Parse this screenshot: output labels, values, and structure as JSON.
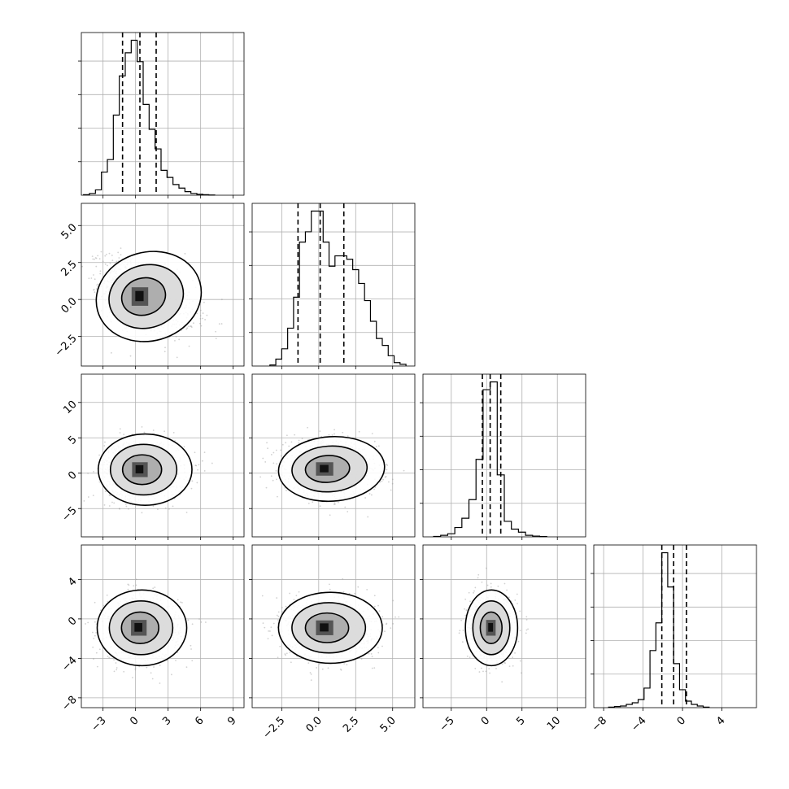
{
  "chart_data": {
    "type": "corner",
    "n_params": 4,
    "grid": true,
    "hist_style": "step",
    "contour_style": "filled density with 3 contour levels and scatter points",
    "colors": {
      "line": "#000000",
      "scatter": "#9a9a9a",
      "grid": "#b0b0b0"
    },
    "params": [
      {
        "index": 0,
        "range": [
          -5,
          10
        ],
        "ticks": [
          -3,
          0,
          3,
          6,
          9
        ],
        "tick_labels": [
          "−3",
          "0",
          "3",
          "6",
          "9"
        ],
        "quantiles": [
          -1.2,
          0.4,
          1.9
        ],
        "hist": {
          "edges_start": -4.8,
          "bin_width": 0.55,
          "counts": [
            0.3,
            1,
            3,
            13,
            20,
            45,
            67,
            80,
            87,
            75,
            51,
            37,
            26,
            14,
            10,
            6,
            4,
            2,
            1,
            0.5,
            0.3,
            0.1
          ]
        }
      },
      {
        "index": 1,
        "range": [
          -4.5,
          6.5
        ],
        "ticks": [
          -2.5,
          0.0,
          2.5,
          5.0
        ],
        "tick_labels": [
          "−2.5",
          "0.0",
          "2.5",
          "5.0"
        ],
        "quantiles": [
          -1.4,
          0.1,
          1.7
        ],
        "hist": {
          "edges_start": -3.3,
          "bin_width": 0.4,
          "counts": [
            0.3,
            2,
            5,
            11,
            20,
            36,
            39,
            45,
            45,
            36,
            29,
            32,
            32,
            31,
            28,
            24,
            19,
            13,
            8,
            6,
            3,
            1,
            0.5
          ]
        }
      },
      {
        "index": 2,
        "range": [
          -9,
          14
        ],
        "ticks": [
          -5,
          0,
          5,
          10
        ],
        "tick_labels": [
          "−5",
          "0",
          "5",
          "10"
        ],
        "quantiles": [
          -0.6,
          0.5,
          2.0
        ],
        "hist": {
          "edges_start": -7.5,
          "bin_width": 1.0,
          "counts": [
            0.3,
            1,
            2,
            6,
            12,
            24,
            50,
            95,
            100,
            40,
            10,
            5,
            3,
            1,
            0.5,
            0.2
          ]
        }
      },
      {
        "index": 3,
        "range": [
          -9,
          7.5
        ],
        "ticks": [
          -8,
          -4,
          0,
          4
        ],
        "tick_labels": [
          "−8",
          "−4",
          "0",
          "4"
        ],
        "quantiles": [
          -2.1,
          -0.9,
          0.4
        ],
        "hist": {
          "edges_start": -7.5,
          "bin_width": 0.6,
          "counts": [
            0.3,
            0.7,
            1,
            2,
            3,
            5,
            12,
            35,
            52,
            95,
            74,
            27,
            11,
            4,
            2,
            1,
            0.3
          ]
        }
      }
    ],
    "pairs": [
      {
        "row": 1,
        "col": 0,
        "x_mean": 0.4,
        "y_mean": 0.2,
        "x_sd": 1.7,
        "y_sd": 1.25,
        "rho": -0.45,
        "skew_x": 0.8
      },
      {
        "row": 2,
        "col": 0,
        "x_mean": 0.4,
        "y_mean": 0.5,
        "x_sd": 1.6,
        "y_sd": 2.1,
        "rho": 0.0,
        "skew_x": 0.5
      },
      {
        "row": 2,
        "col": 1,
        "x_mean": 0.4,
        "y_mean": 0.6,
        "x_sd": 1.3,
        "y_sd": 1.9,
        "rho": -0.1,
        "skew_x": 0.6
      },
      {
        "row": 3,
        "col": 0,
        "x_mean": 0.3,
        "y_mean": -0.9,
        "x_sd": 1.6,
        "y_sd": 1.6,
        "rho": 0.0,
        "skew_x": 0.3
      },
      {
        "row": 3,
        "col": 1,
        "x_mean": 0.4,
        "y_mean": -0.9,
        "x_sd": 1.3,
        "y_sd": 1.5,
        "rho": 0.0,
        "skew_x": 0.5
      },
      {
        "row": 3,
        "col": 2,
        "x_mean": 0.6,
        "y_mean": -0.9,
        "x_sd": 1.5,
        "y_sd": 1.6,
        "rho": 0.0,
        "skew_x": 0.1
      }
    ]
  }
}
